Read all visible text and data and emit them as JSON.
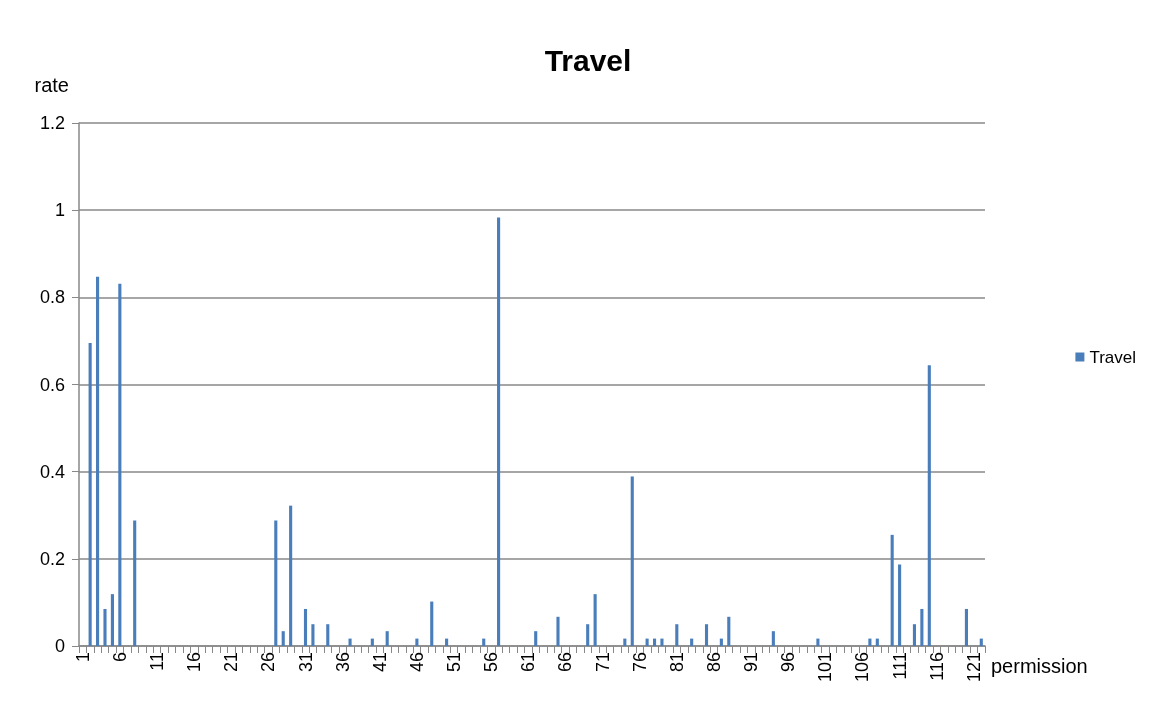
{
  "chart_data": {
    "type": "bar",
    "title": "Travel",
    "xlabel": "permission",
    "ylabel": "rate",
    "categories": [
      "1",
      null,
      null,
      null,
      null,
      "6",
      null,
      null,
      null,
      null,
      "11",
      null,
      null,
      null,
      null,
      "16",
      null,
      null,
      null,
      null,
      "21",
      null,
      null,
      null,
      null,
      "26",
      null,
      null,
      null,
      null,
      "31",
      null,
      null,
      null,
      null,
      "36",
      null,
      null,
      null,
      null,
      "41",
      null,
      null,
      null,
      null,
      "46",
      null,
      null,
      null,
      null,
      "51",
      null,
      null,
      null,
      null,
      "56",
      null,
      null,
      null,
      null,
      "61",
      null,
      null,
      null,
      null,
      "66",
      null,
      null,
      null,
      null,
      "71",
      null,
      null,
      null,
      null,
      "76",
      null,
      null,
      null,
      null,
      "81",
      null,
      null,
      null,
      null,
      "86",
      null,
      null,
      null,
      null,
      "91",
      null,
      null,
      null,
      null,
      "96",
      null,
      null,
      null,
      null,
      "101",
      null,
      null,
      null,
      null,
      "106",
      null,
      null,
      null,
      null,
      "111",
      null,
      null,
      null,
      null,
      "116",
      null,
      null,
      null,
      null,
      "121",
      null
    ],
    "series": [
      {
        "name": "Travel",
        "color": "#4a7ebb",
        "values": [
          0,
          0.695,
          0.847,
          0.085,
          0.119,
          0.831,
          0,
          0.288,
          0,
          0,
          0,
          0,
          0,
          0,
          0,
          0,
          0,
          0,
          0,
          0,
          0,
          0,
          0,
          0,
          0,
          0,
          0.288,
          0.034,
          0.322,
          0,
          0.085,
          0.05,
          0,
          0.05,
          0,
          0,
          0.017,
          0,
          0,
          0.017,
          0,
          0.034,
          0,
          0,
          0,
          0.017,
          0,
          0.102,
          0,
          0.017,
          0,
          0,
          0,
          0,
          0.017,
          0,
          0.983,
          0,
          0,
          0,
          0,
          0.034,
          0,
          0,
          0.067,
          0,
          0,
          0,
          0.05,
          0.119,
          0,
          0,
          0,
          0.017,
          0.389,
          0,
          0.017,
          0.017,
          0.017,
          0,
          0.05,
          0,
          0.017,
          0,
          0.05,
          0,
          0.017,
          0.067,
          0,
          0,
          0,
          0,
          0,
          0.034,
          0,
          0,
          0,
          0,
          0,
          0.017,
          0,
          0,
          0,
          0,
          0,
          0,
          0.017,
          0.017,
          0,
          0.255,
          0.187,
          0,
          0.05,
          0.085,
          0.644,
          0,
          0,
          0,
          0,
          0.085,
          0,
          0.017
        ]
      }
    ],
    "ylim": [
      0,
      1.2
    ],
    "yticks": [
      0,
      0.2,
      0.4,
      0.6,
      0.8,
      1,
      1.2
    ],
    "grid": "y",
    "legend": "right"
  }
}
